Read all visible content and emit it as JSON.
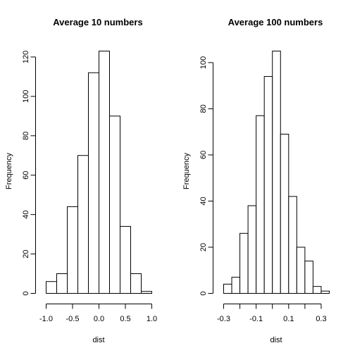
{
  "chart_data": [
    {
      "type": "histogram",
      "title": "Average 10 numbers",
      "xlabel": "dist",
      "ylabel": "Frequency",
      "bin_edges": [
        -1.0,
        -0.8,
        -0.6,
        -0.4,
        -0.2,
        0.0,
        0.2,
        0.4,
        0.6,
        0.8,
        1.0
      ],
      "values": [
        6,
        10,
        44,
        70,
        112,
        123,
        90,
        34,
        10,
        1
      ],
      "ylim": [
        0,
        123
      ],
      "xlim": [
        -1.0,
        1.0
      ],
      "xticks": [
        -1.0,
        -0.5,
        0.0,
        0.5,
        1.0
      ],
      "xtick_labels": [
        "-1.0",
        "-0.5",
        "0.0",
        "0.5",
        "1.0"
      ],
      "yticks": [
        0,
        20,
        40,
        60,
        80,
        100,
        120
      ],
      "ytick_labels": [
        "0",
        "20",
        "40",
        "60",
        "80",
        "100",
        "120"
      ],
      "grid": false
    },
    {
      "type": "histogram",
      "title": "Average 100 numbers",
      "xlabel": "dist",
      "ylabel": "Frequency",
      "bin_edges": [
        -0.3,
        -0.25,
        -0.2,
        -0.15,
        -0.1,
        -0.05,
        0.0,
        0.05,
        0.1,
        0.15,
        0.2,
        0.25,
        0.3,
        0.35
      ],
      "values": [
        4,
        7,
        26,
        38,
        77,
        94,
        105,
        69,
        42,
        20,
        14,
        3,
        1
      ],
      "ylim": [
        0,
        105
      ],
      "xlim": [
        -0.3,
        0.35
      ],
      "xticks": [
        -0.3,
        -0.2,
        -0.1,
        0.0,
        0.1,
        0.2,
        0.3
      ],
      "xtick_labels": [
        "-0.3",
        "",
        "-0.1",
        "",
        "0.1",
        "",
        "0.3"
      ],
      "yticks": [
        0,
        20,
        40,
        60,
        80,
        100
      ],
      "ytick_labels": [
        "0",
        "20",
        "40",
        "60",
        "80",
        "100"
      ],
      "grid": false
    }
  ]
}
